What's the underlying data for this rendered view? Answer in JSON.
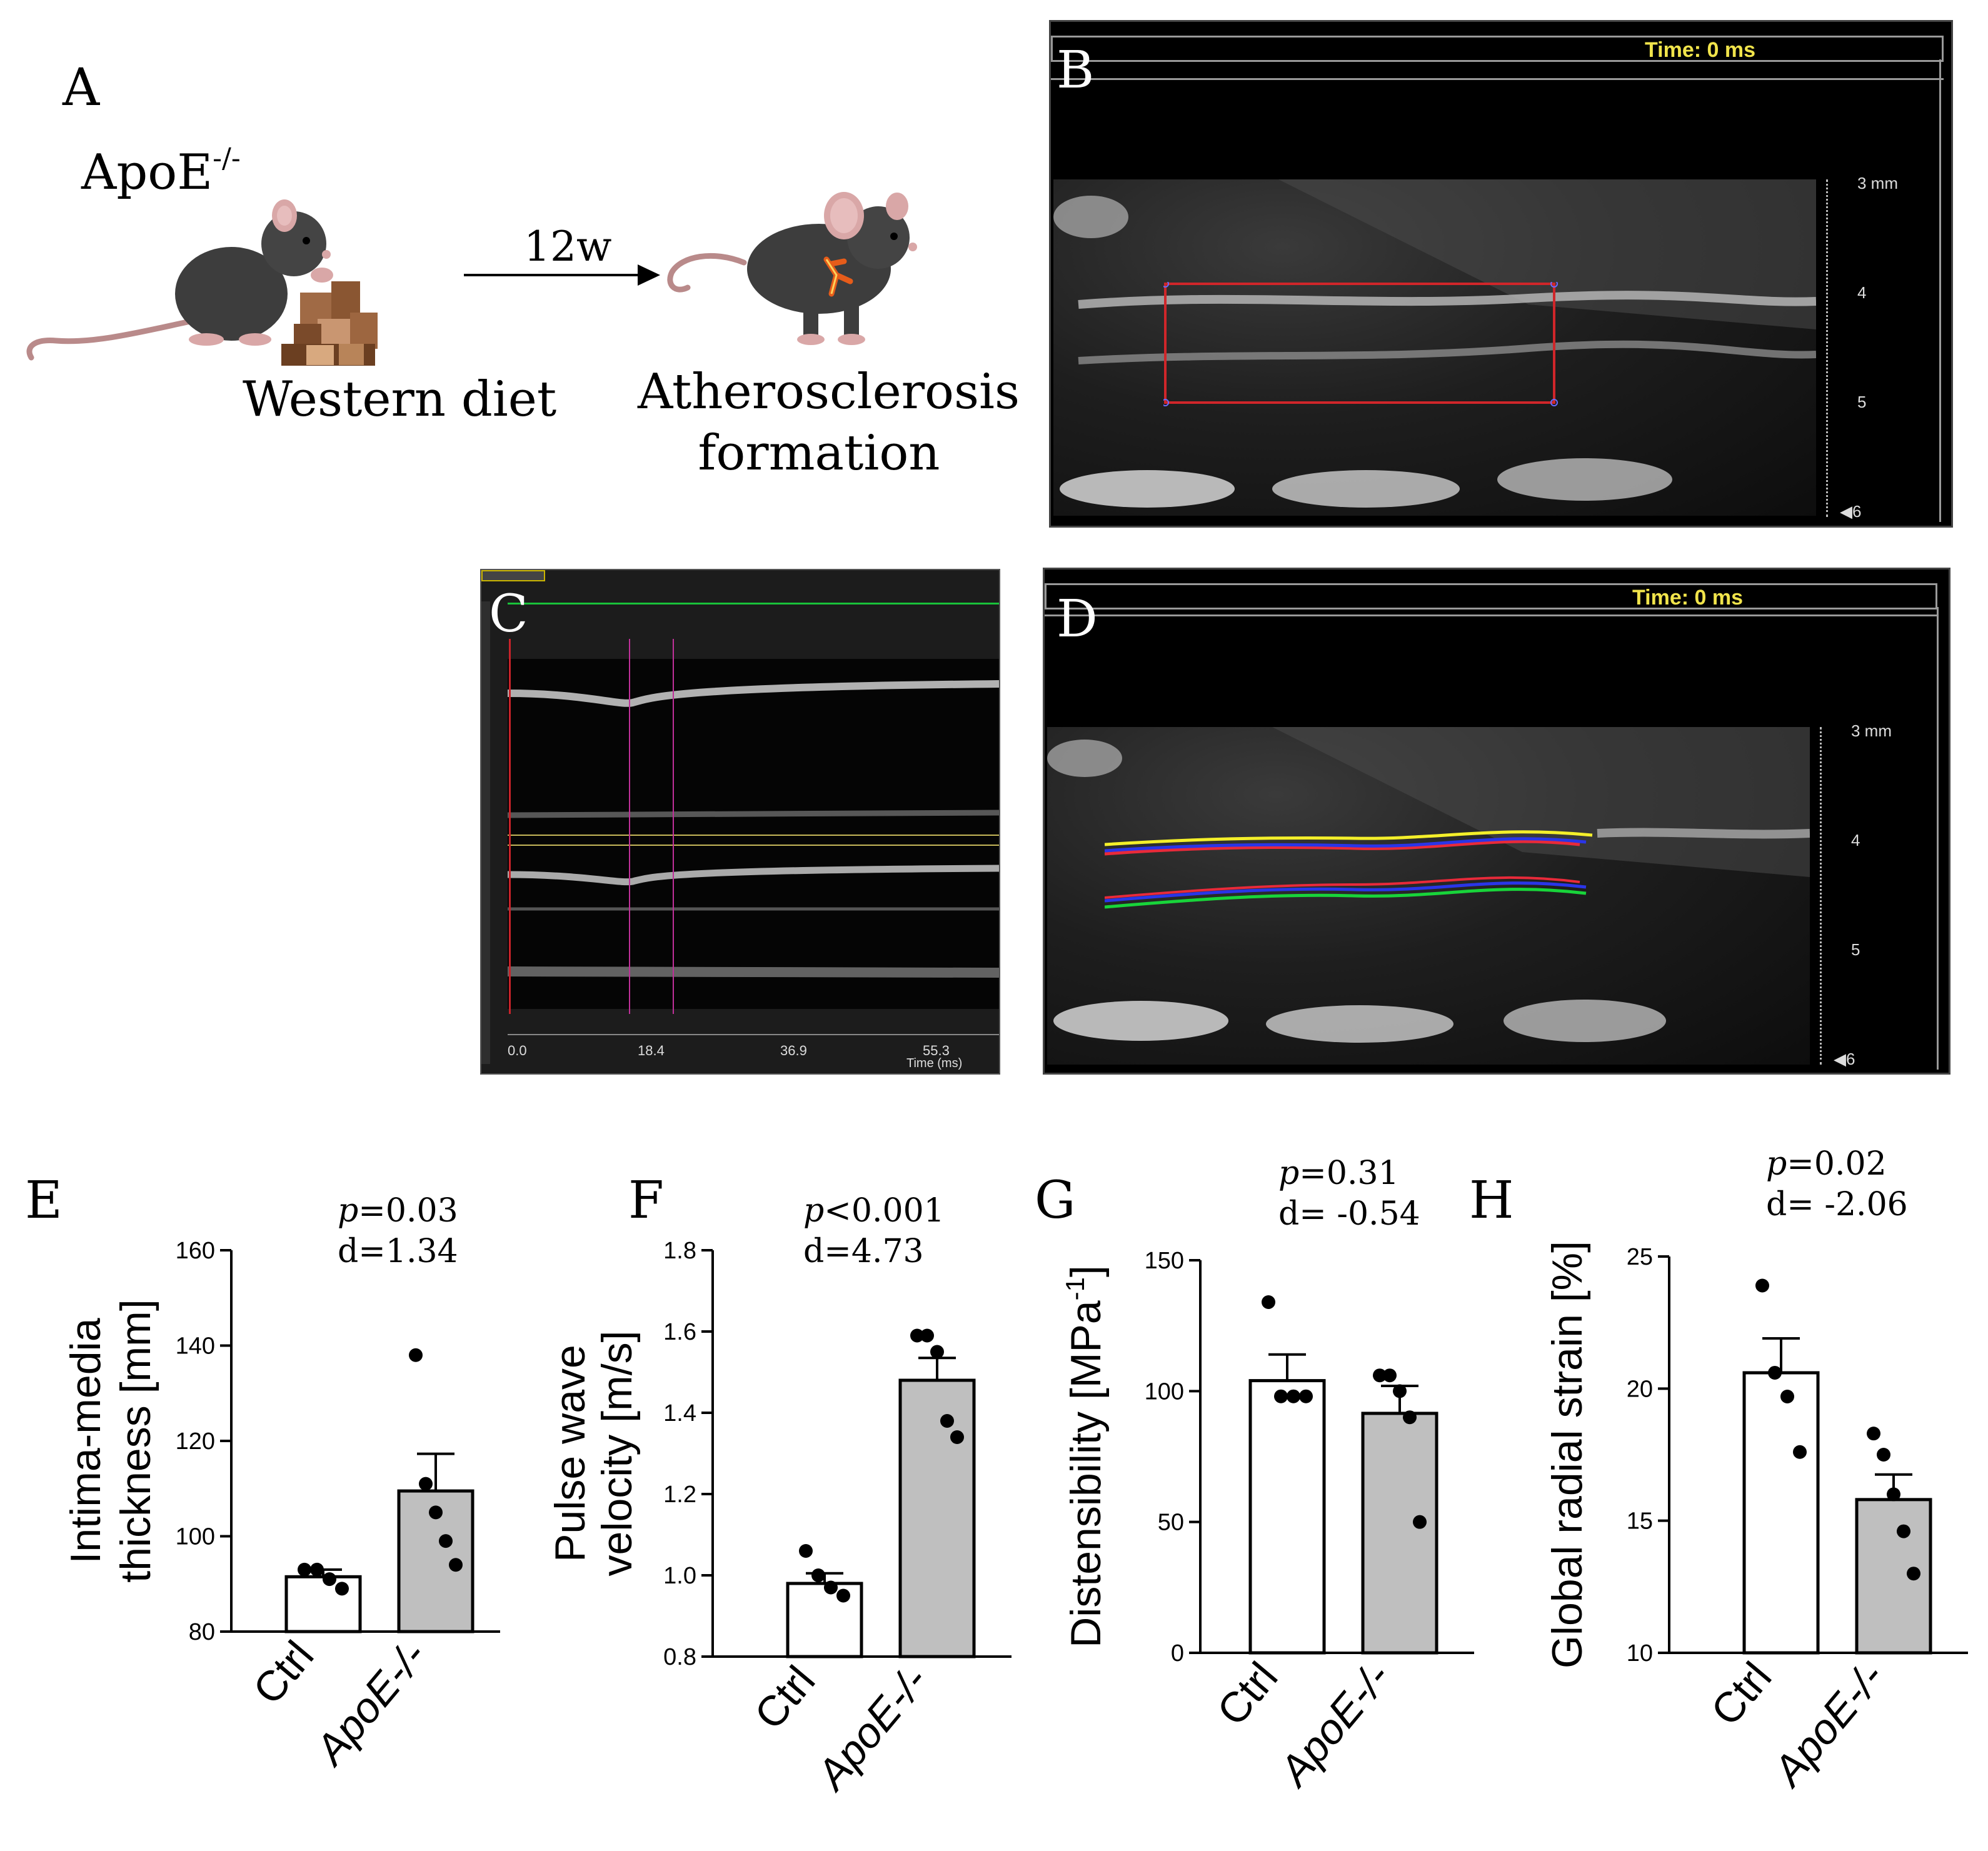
{
  "panel_a": {
    "letter": "A",
    "mouse_label": "ApoE",
    "mouse_label_sup": "-/-",
    "duration": "12w",
    "diet_label": "Western diet",
    "outcome_line1": "Atherosclerosis",
    "outcome_line2": "formation"
  },
  "panel_b": {
    "letter": "B",
    "time_label": "Time: 0 ms",
    "depth_ticks": [
      "3 mm",
      "4",
      "5",
      "6"
    ]
  },
  "panel_c": {
    "letter": "C",
    "time_ticks": [
      "0.0",
      "18.4",
      "36.9",
      "55.3"
    ],
    "time_axis_label": "Time (ms)"
  },
  "panel_d": {
    "letter": "D",
    "time_label": "Time: 0 ms",
    "depth_ticks": [
      "3 mm",
      "4",
      "5",
      "6"
    ]
  },
  "panel_letters": {
    "e": "E",
    "f": "F",
    "g": "G",
    "h": "H"
  },
  "chart_data": [
    {
      "panel": "E",
      "type": "bar",
      "categories": [
        "Ctrl",
        "ApoE-/-"
      ],
      "ylabel_line1": "Intima-media",
      "ylabel_line2": "thickness [mm]",
      "ylim": [
        80,
        160
      ],
      "yticks": [
        80,
        100,
        120,
        140,
        160
      ],
      "ytick_labels": [
        "80",
        "100",
        "120",
        "140",
        "160"
      ],
      "values": [
        91.5,
        109.5
      ],
      "sem": [
        1.5,
        7.8
      ],
      "points": [
        [
          93,
          93,
          91,
          89
        ],
        [
          138,
          111,
          105,
          99,
          94
        ]
      ],
      "p_label": "p",
      "p_value": "=0.03",
      "d_value": "d=1.34"
    },
    {
      "panel": "F",
      "type": "bar",
      "categories": [
        "Ctrl",
        "ApoE-/-"
      ],
      "ylabel_line1": "Pulse wave",
      "ylabel_line2": "velocity [m/s]",
      "ylim": [
        0.8,
        1.8
      ],
      "yticks": [
        0.8,
        1.0,
        1.2,
        1.4,
        1.6,
        1.8
      ],
      "ytick_labels": [
        "0.8",
        "1.0",
        "1.2",
        "1.4",
        "1.6",
        "1.8"
      ],
      "values": [
        0.98,
        1.48
      ],
      "sem": [
        0.025,
        0.055
      ],
      "points": [
        [
          1.06,
          1.0,
          0.97,
          0.95
        ],
        [
          1.59,
          1.59,
          1.55,
          1.38,
          1.34
        ]
      ],
      "p_label": "p",
      "p_value": "<0.001",
      "d_value": "d=4.73"
    },
    {
      "panel": "G",
      "type": "bar",
      "categories": [
        "Ctrl",
        "ApoE-/-"
      ],
      "ylabel_line1": "Distensibility [MPa",
      "ylabel_sup": "-1",
      "ylabel_close": "]",
      "ylim": [
        0,
        150
      ],
      "yticks": [
        0,
        50,
        100,
        150
      ],
      "ytick_labels": [
        "0",
        "50",
        "100",
        "150"
      ],
      "values": [
        104,
        91.5
      ],
      "sem": [
        10,
        10.5
      ],
      "points": [
        [
          134,
          98,
          98,
          98
        ],
        [
          106,
          106,
          100,
          90,
          50
        ]
      ],
      "p_label": "p",
      "p_value": "=0.31",
      "d_value": "d= -0.54"
    },
    {
      "panel": "H",
      "type": "bar",
      "categories": [
        "Ctrl",
        "ApoE-/-"
      ],
      "ylabel_line1": "Global radial strain [%]",
      "ylim": [
        10,
        25
      ],
      "yticks": [
        10,
        15,
        20,
        25
      ],
      "ytick_labels": [
        "10",
        "15",
        "20",
        "25"
      ],
      "values": [
        20.6,
        15.8
      ],
      "sem": [
        1.3,
        0.95
      ],
      "points": [
        [
          23.9,
          20.6,
          19.7,
          17.6
        ],
        [
          18.3,
          17.5,
          16.0,
          14.6,
          13.0
        ]
      ],
      "p_label": "p",
      "p_value": "=0.02",
      "d_value": "d= -2.06"
    }
  ],
  "colors": {
    "control_bar": "#ffffff",
    "apoe_bar": "#bfbfbf",
    "ultrasound_bg": "#000000",
    "roi_box": "#d0262a",
    "time_text": "#f1e44b",
    "trace_yellow": "#f4ef2a",
    "trace_blue": "#2a35e8",
    "trace_red": "#e82a3a",
    "trace_green": "#18d43a",
    "mmode_marker": "#c0309a",
    "mmode_green_line": "#19c23a"
  }
}
